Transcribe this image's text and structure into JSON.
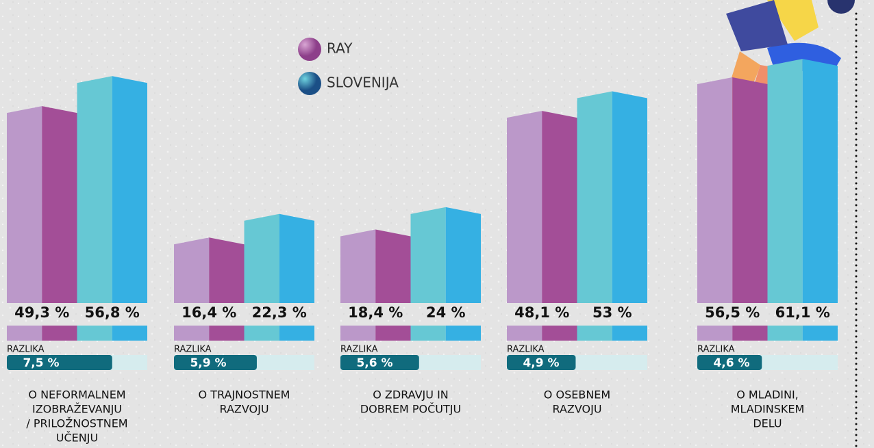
{
  "chart_data": {
    "type": "bar",
    "categories": [
      [
        "O NEFORMALNEM",
        "IZOBRAŽEVANJU",
        "/ PRILOŽNOSTNEM",
        "UČENJU"
      ],
      [
        "O TRAJNOSTNEM",
        "RAZVOJU"
      ],
      [
        "O ZDRAVJU IN",
        "DOBREM POČUTJU"
      ],
      [
        "O OSEBNEM",
        "RAZVOJU"
      ],
      [
        "O MLADINI,",
        "MLADINSKEM",
        "DELU"
      ]
    ],
    "series": [
      {
        "name": "RAY",
        "color": "#a34e97",
        "light": "#bb98c9",
        "values": [
          49.3,
          16.4,
          18.4,
          48.1,
          56.5
        ],
        "value_labels": [
          "49,3 %",
          "16,4 %",
          "18,4 %",
          "48,1 %",
          "56,5 %"
        ]
      },
      {
        "name": "SLOVENIJA",
        "color": "#35b0e3",
        "light": "#66c8d4",
        "values": [
          56.8,
          22.3,
          24,
          53,
          61.1
        ],
        "value_labels": [
          "56,8 %",
          "22,3 %",
          "24 %",
          "53 %",
          "61,1 %"
        ]
      }
    ],
    "ylim": [
      0,
      75
    ],
    "difference": {
      "label": "RAZLIKA",
      "color": "#106b7d",
      "values": [
        7.5,
        5.9,
        5.6,
        4.9,
        4.6
      ],
      "value_labels": [
        "7,5 %",
        "5,9 %",
        "5,6 %",
        "4,9 %",
        "4,6 %"
      ],
      "xlim": [
        0,
        10
      ]
    }
  }
}
